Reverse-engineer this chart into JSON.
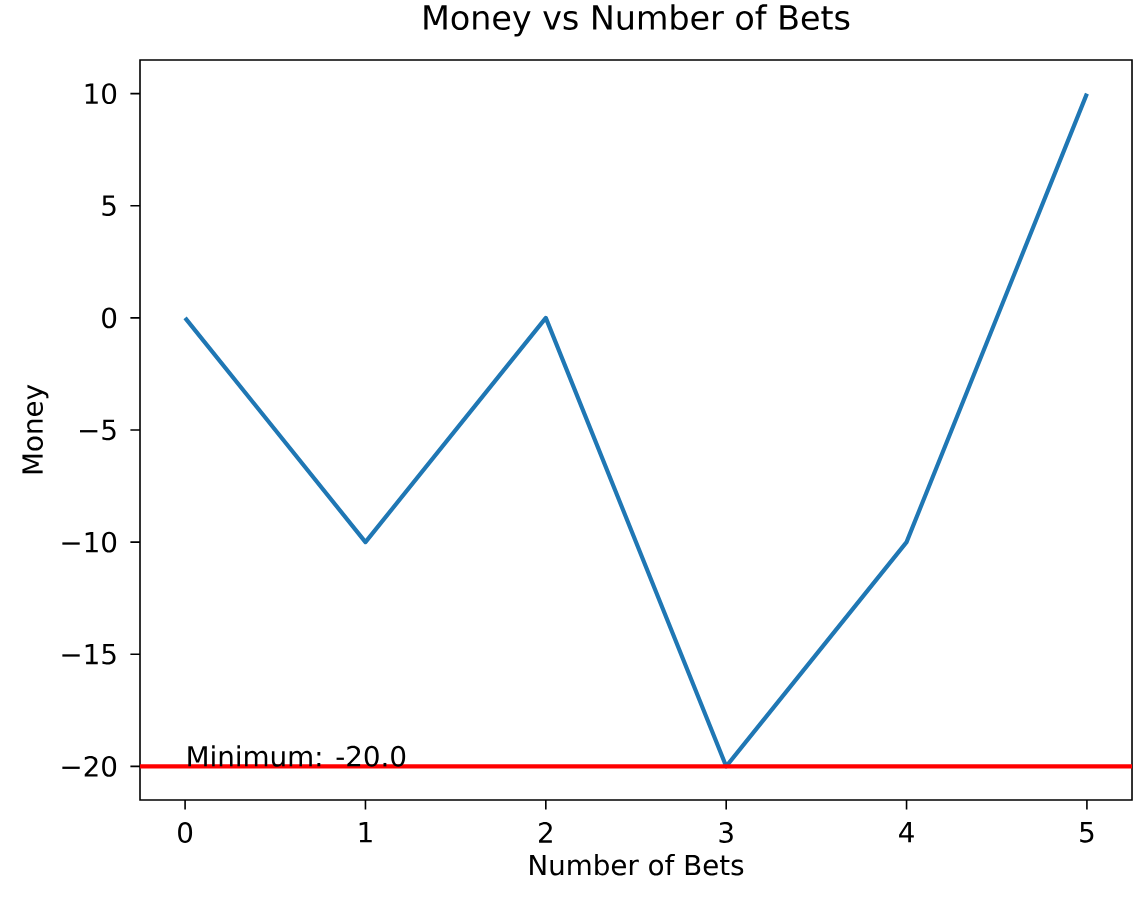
{
  "chart_data": {
    "type": "line",
    "title": "Money vs Number of Bets",
    "xlabel": "Number of Bets",
    "ylabel": "Money",
    "x": [
      0,
      1,
      2,
      3,
      4,
      5
    ],
    "series": [
      {
        "color": "#1f77b4",
        "values": [
          0,
          -10,
          0,
          -20,
          -10,
          10
        ]
      }
    ],
    "xlim": [
      -0.25,
      5.25
    ],
    "ylim": [
      -21.5,
      11.5
    ],
    "xticks": [
      0,
      1,
      2,
      3,
      4,
      5
    ],
    "yticks": [
      {
        "value": -20,
        "label": "−20"
      },
      {
        "value": -15,
        "label": "−15"
      },
      {
        "value": -10,
        "label": "−10"
      },
      {
        "value": -5,
        "label": "−5"
      },
      0,
      5,
      10
    ],
    "ref_lines": [
      {
        "axis": "y",
        "value": -20,
        "color": "#ff0000",
        "line_style": "solid"
      }
    ],
    "annotations": [
      {
        "text": "Minimum: -20.0",
        "x": 0,
        "y": -20
      }
    ],
    "line_style": "solid"
  }
}
